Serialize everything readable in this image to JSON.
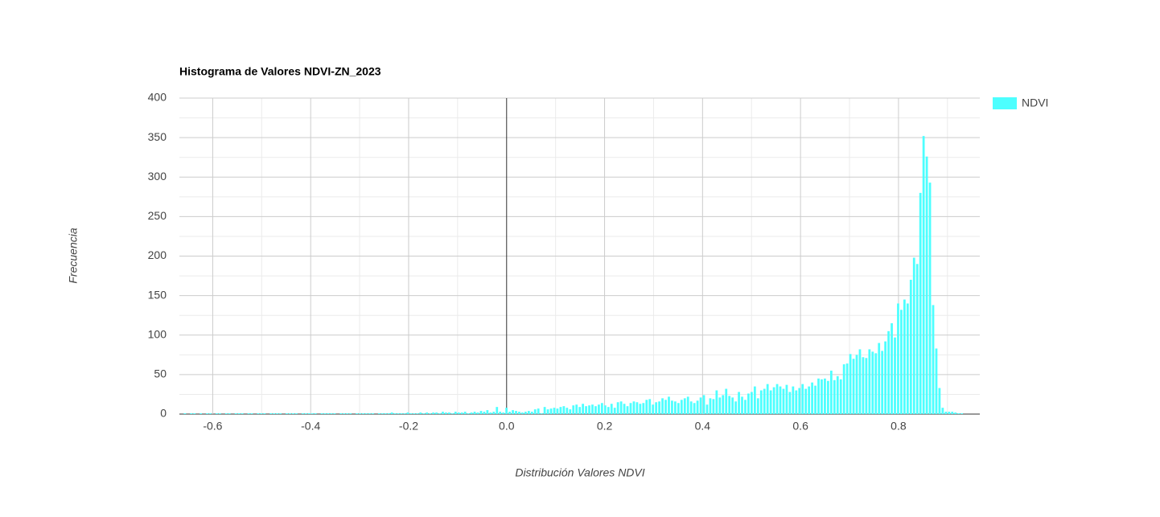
{
  "chart_data": {
    "type": "histogram",
    "title": "Histograma de Valores NDVI-ZN_2023",
    "x_label": "Distribución Valores NDVI",
    "y_label": "Frecuencia",
    "series": [
      {
        "name": "NDVI",
        "color": "#4dffff",
        "values": [
          1,
          0,
          1,
          1,
          0,
          1,
          0,
          1,
          1,
          0,
          1,
          1,
          0,
          1,
          1,
          0,
          1,
          1,
          1,
          0,
          1,
          1,
          0,
          1,
          1,
          1,
          0,
          1,
          1,
          1,
          1,
          0,
          1,
          1,
          1,
          1,
          0,
          1,
          1,
          1,
          1,
          1,
          0,
          1,
          1,
          1,
          1,
          1,
          0,
          1,
          1,
          1,
          1,
          0,
          1,
          1,
          1,
          1,
          1,
          1,
          0,
          1,
          1,
          1,
          1,
          2,
          1,
          1,
          1,
          1,
          2,
          1,
          1,
          1,
          2,
          1,
          2,
          1,
          2,
          2,
          1,
          3,
          2,
          2,
          1,
          3,
          2,
          2,
          3,
          1,
          2,
          3,
          2,
          4,
          3,
          5,
          2,
          3,
          9,
          3,
          2,
          8,
          3,
          5,
          4,
          3,
          2,
          3,
          4,
          3,
          6,
          7,
          1,
          9,
          6,
          7,
          8,
          7,
          9,
          10,
          8,
          6,
          11,
          12,
          9,
          13,
          10,
          11,
          12,
          10,
          12,
          14,
          11,
          9,
          13,
          8,
          15,
          16,
          13,
          10,
          14,
          16,
          15,
          13,
          14,
          18,
          19,
          12,
          15,
          16,
          20,
          18,
          22,
          17,
          16,
          14,
          18,
          20,
          22,
          16,
          14,
          17,
          21,
          24,
          12,
          20,
          19,
          30,
          21,
          24,
          32,
          23,
          21,
          16,
          28,
          22,
          18,
          26,
          28,
          35,
          20,
          30,
          32,
          38,
          30,
          34,
          38,
          35,
          32,
          37,
          28,
          35,
          30,
          33,
          38,
          32,
          35,
          40,
          36,
          45,
          44,
          45,
          42,
          55,
          43,
          48,
          44,
          63,
          64,
          76,
          70,
          75,
          82,
          72,
          71,
          82,
          79,
          77,
          90,
          80,
          92,
          105,
          115,
          97,
          140,
          132,
          145,
          140,
          170,
          198,
          190,
          280,
          352,
          326,
          293,
          138,
          83,
          33,
          8,
          3,
          3,
          3,
          2,
          1,
          1,
          0,
          0,
          0,
          0
        ]
      }
    ],
    "bins": [
      -0.66,
      -0.6535,
      -0.647,
      -0.6405,
      -0.634,
      -0.6275,
      -0.621,
      -0.6145,
      -0.608,
      -0.6015,
      -0.595,
      -0.5885,
      -0.582,
      -0.5755,
      -0.569,
      -0.5625,
      -0.556,
      -0.5495,
      -0.543,
      -0.5365,
      -0.53,
      -0.5235,
      -0.517,
      -0.5105,
      -0.504,
      -0.4975,
      -0.491,
      -0.4845,
      -0.478,
      -0.4715,
      -0.465,
      -0.4585,
      -0.452,
      -0.4455,
      -0.439,
      -0.4325,
      -0.426,
      -0.4195,
      -0.413,
      -0.4065,
      -0.4,
      -0.3935,
      -0.387,
      -0.3805,
      -0.374,
      -0.3675,
      -0.361,
      -0.3545,
      -0.348,
      -0.3415,
      -0.335,
      -0.3285,
      -0.322,
      -0.3155,
      -0.309,
      -0.3025,
      -0.296,
      -0.2895,
      -0.283,
      -0.2765,
      -0.27,
      -0.2635,
      -0.257,
      -0.2505,
      -0.244,
      -0.2375,
      -0.231,
      -0.2245,
      -0.218,
      -0.2115,
      -0.205,
      -0.1985,
      -0.192,
      -0.1855,
      -0.179,
      -0.1725,
      -0.166,
      -0.1595,
      -0.153,
      -0.1465,
      -0.14,
      -0.1335,
      -0.127,
      -0.1205,
      -0.114,
      -0.1075,
      -0.101,
      -0.0945,
      -0.088,
      -0.0815,
      -0.075,
      -0.0685,
      -0.062,
      -0.0555,
      -0.049,
      -0.0425,
      -0.036,
      -0.0295,
      -0.023,
      -0.0165,
      -0.01,
      -0.0035,
      0.003,
      0.0095,
      0.016,
      0.0225,
      0.029,
      0.0355,
      0.042,
      0.0485,
      0.055,
      0.0615,
      0.068,
      0.0745,
      0.081,
      0.0875,
      0.094,
      0.1005,
      0.107,
      0.1135,
      0.12,
      0.1265,
      0.133,
      0.1395,
      0.146,
      0.1525,
      0.159,
      0.1655,
      0.172,
      0.1785,
      0.185,
      0.1915,
      0.198,
      0.2045,
      0.211,
      0.2175,
      0.224,
      0.2305,
      0.237,
      0.2435,
      0.25,
      0.2565,
      0.263,
      0.2695,
      0.276,
      0.2825,
      0.289,
      0.2955,
      0.302,
      0.3085,
      0.315,
      0.3215,
      0.328,
      0.3345,
      0.341,
      0.3475,
      0.354,
      0.3605,
      0.367,
      0.3735,
      0.38,
      0.3865,
      0.393,
      0.3995,
      0.406,
      0.4125,
      0.419,
      0.4255,
      0.432,
      0.4385,
      0.445,
      0.4515,
      0.458,
      0.4645,
      0.471,
      0.4775,
      0.484,
      0.4905,
      0.497,
      0.5035,
      0.51,
      0.5165,
      0.523,
      0.5295,
      0.536,
      0.5425,
      0.549,
      0.5555,
      0.562,
      0.5685,
      0.575,
      0.5815,
      0.588,
      0.5945,
      0.601,
      0.6075,
      0.614,
      0.6205,
      0.627,
      0.6335,
      0.64,
      0.6465,
      0.653,
      0.6595,
      0.666,
      0.6725,
      0.679,
      0.6855,
      0.692,
      0.6985,
      0.705,
      0.7115,
      0.718,
      0.7245,
      0.731,
      0.7375,
      0.744,
      0.7505,
      0.757,
      0.7635,
      0.77,
      0.7765,
      0.783,
      0.7895,
      0.796,
      0.8025,
      0.809,
      0.8155,
      0.822,
      0.8285,
      0.835,
      0.8415,
      0.848,
      0.8545,
      0.861,
      0.8675,
      0.874,
      0.8805,
      0.887,
      0.8935,
      0.9,
      0.9065,
      0.913,
      0.9195,
      0.926,
      0.9325,
      0.939,
      0.9455,
      0.952,
      0.9585
    ],
    "xlim": [
      -0.668,
      0.966
    ],
    "xticks": [
      -0.6,
      -0.4,
      -0.2,
      {
        "value": 0,
        "label": "0.0"
      },
      0.2,
      0.4,
      0.6,
      0.8
    ],
    "x_minor_ticks": [
      -0.5,
      -0.3,
      -0.1,
      0.1,
      0.3,
      0.5,
      0.7,
      0.9
    ],
    "ylim": [
      0,
      400
    ],
    "yticks": [
      0,
      50,
      100,
      150,
      200,
      250,
      300,
      350,
      400
    ],
    "y_minor_ticks": [
      25,
      75,
      125,
      175,
      225,
      275,
      325,
      375
    ],
    "grid": true,
    "legend": "right"
  }
}
